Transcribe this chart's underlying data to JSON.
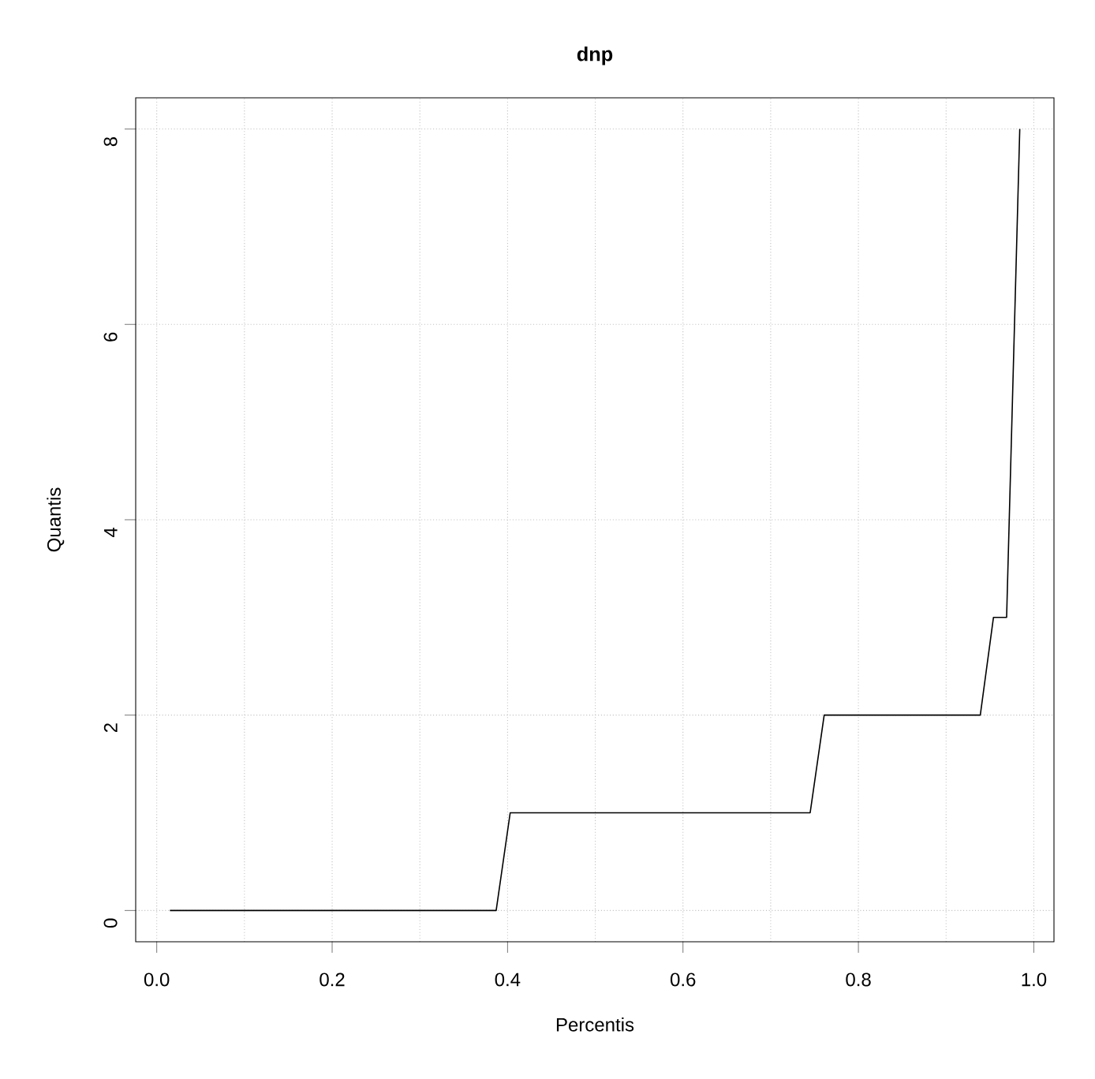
{
  "chart_data": {
    "type": "line",
    "title": "dnp",
    "xlabel": "Percentis",
    "ylabel": "Quantis",
    "x": [
      0.015,
      0.387,
      0.403,
      0.745,
      0.761,
      0.939,
      0.954,
      0.969,
      0.984
    ],
    "series": [
      {
        "color": "#000000",
        "values": [
          0,
          0,
          1,
          1,
          2,
          2,
          3,
          3,
          8
        ]
      }
    ],
    "xlim": [
      -0.024,
      1.023
    ],
    "ylim": [
      -0.32,
      8.32
    ],
    "xticks": [
      {
        "value": 0,
        "label": "0.0"
      },
      0.2,
      0.4,
      0.6,
      0.8,
      {
        "value": 1,
        "label": "1.0"
      }
    ],
    "yticks": [
      0,
      2,
      4,
      6,
      8
    ],
    "grid": true,
    "marker": "none",
    "line_style": "solid"
  }
}
